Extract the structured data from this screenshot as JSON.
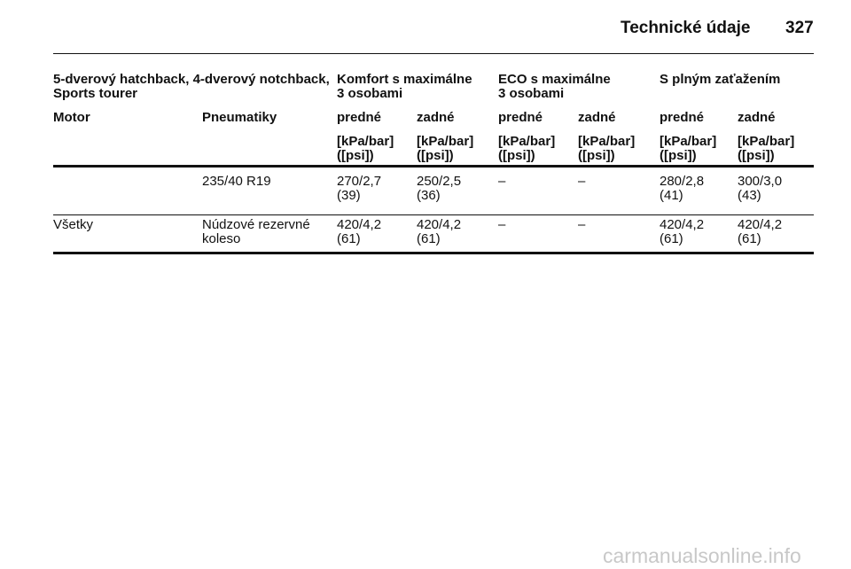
{
  "header": {
    "title": "Technické údaje",
    "page": "327"
  },
  "table": {
    "group_headers": [
      "5-dverový hatchback, 4-dverový notchback,\nSports tourer",
      "Komfort s maximálne\n3 osobami",
      "ECO s maximálne\n3 osobami",
      "S plným zaťažením"
    ],
    "columns": [
      "Motor",
      "Pneumatiky",
      "predné",
      "zadné",
      "predné",
      "zadné",
      "predné",
      "zadné"
    ],
    "units": [
      "[kPa/bar]\n([psi])",
      "[kPa/bar]\n([psi])",
      "[kPa/bar]\n([psi])",
      "[kPa/bar]\n([psi])",
      "[kPa/bar]\n([psi])",
      "[kPa/bar]\n([psi])"
    ],
    "rows": [
      [
        null,
        "235/40 R19",
        "270/2,7\n(39)",
        "250/2,5\n(36)",
        "–",
        "–",
        "280/2,8\n(41)",
        "300/3,0\n(43)"
      ],
      [
        "Všetky",
        "Núdzové rezervné\nkoleso",
        "420/4,2\n(61)",
        "420/4,2\n(61)",
        "–",
        "–",
        "420/4,2\n(61)",
        "420/4,2\n(61)"
      ]
    ]
  },
  "watermark": "carmanualsonline.info"
}
